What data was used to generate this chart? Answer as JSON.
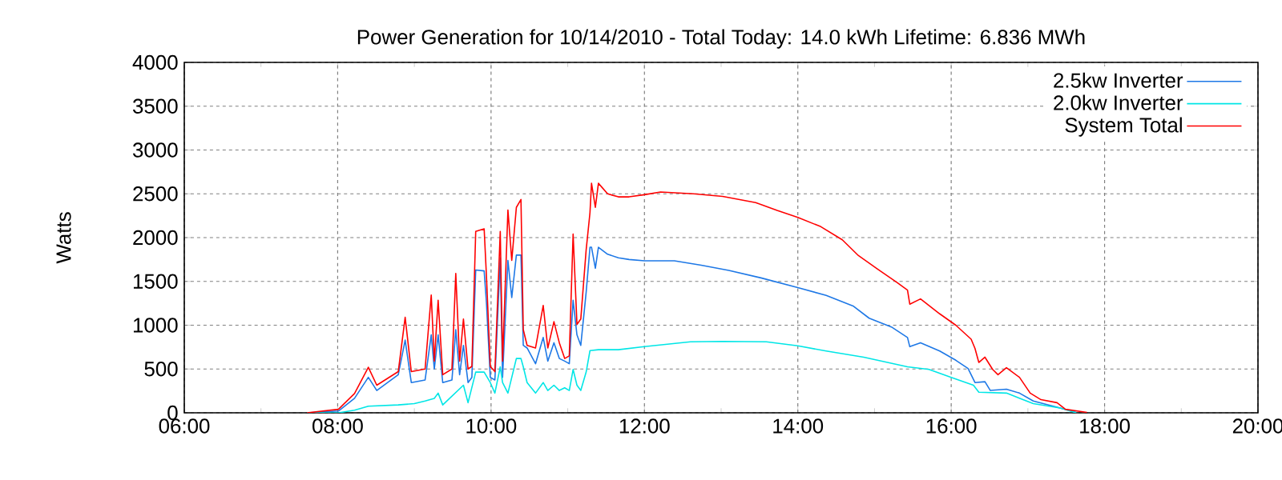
{
  "chart_data": {
    "type": "line",
    "title": "Power Generation for 10/14/2010 - Total Today: 14.0 kWh   Lifetime: 6.836 MWh",
    "ylabel": "Watts",
    "xlim": [
      6,
      20
    ],
    "ylim": [
      0,
      4000
    ],
    "xticks": [
      {
        "value": 6,
        "label": "06:00"
      },
      {
        "value": 8,
        "label": "08:00"
      },
      {
        "value": 10,
        "label": "10:00"
      },
      {
        "value": 12,
        "label": "12:00"
      },
      {
        "value": 14,
        "label": "14:00"
      },
      {
        "value": 16,
        "label": "16:00"
      },
      {
        "value": 18,
        "label": "18:00"
      },
      {
        "value": 20,
        "label": "20:00"
      }
    ],
    "yticks": [
      0,
      500,
      1000,
      1500,
      2000,
      2500,
      3000,
      3500,
      4000
    ],
    "grid": true,
    "legend": "top right",
    "marker": "none",
    "line_style": "solid",
    "series": [
      {
        "name": "2.5kw Inverter",
        "color": "#1e78e6",
        "x": [
          7.6,
          8.01,
          8.22,
          8.4,
          8.51,
          8.79,
          8.88,
          8.96,
          9.14,
          9.22,
          9.26,
          9.31,
          9.37,
          9.49,
          9.54,
          9.59,
          9.64,
          9.7,
          9.75,
          9.8,
          9.91,
          9.94,
          9.99,
          10.05,
          10.12,
          10.15,
          10.22,
          10.27,
          10.33,
          10.39,
          10.42,
          10.47,
          10.58,
          10.68,
          10.74,
          10.82,
          10.89,
          10.96,
          11.02,
          11.07,
          11.12,
          11.17,
          11.24,
          11.29,
          11.31,
          11.36,
          11.4,
          11.52,
          11.66,
          11.8,
          12.0,
          12.39,
          12.74,
          13.1,
          13.52,
          14.0,
          14.37,
          14.72,
          14.93,
          15.22,
          15.43,
          15.46,
          15.6,
          15.85,
          16.06,
          16.22,
          16.31,
          16.44,
          16.51,
          16.72,
          16.89,
          17.07,
          17.42,
          17.63
        ],
        "values": [
          0,
          20,
          165,
          405,
          255,
          435,
          830,
          345,
          375,
          890,
          500,
          890,
          345,
          375,
          950,
          435,
          770,
          345,
          405,
          1630,
          1620,
          1255,
          405,
          375,
          1770,
          405,
          1740,
          1315,
          1800,
          1800,
          770,
          740,
          560,
          860,
          590,
          800,
          620,
          590,
          560,
          1285,
          890,
          770,
          1375,
          1890,
          1890,
          1650,
          1890,
          1810,
          1770,
          1750,
          1735,
          1735,
          1685,
          1625,
          1540,
          1430,
          1340,
          1220,
          1080,
          980,
          860,
          755,
          800,
          705,
          600,
          505,
          345,
          355,
          255,
          270,
          225,
          135,
          55,
          5
        ]
      },
      {
        "name": "2.0kw Inverter",
        "color": "#00e6e6",
        "x": [
          7.6,
          8.01,
          8.22,
          8.4,
          8.79,
          9.0,
          9.14,
          9.26,
          9.31,
          9.37,
          9.64,
          9.7,
          9.8,
          9.91,
          9.99,
          10.05,
          10.12,
          10.15,
          10.22,
          10.33,
          10.39,
          10.42,
          10.47,
          10.58,
          10.68,
          10.74,
          10.82,
          10.89,
          10.96,
          11.02,
          11.07,
          11.12,
          11.17,
          11.24,
          11.29,
          11.4,
          11.66,
          12.0,
          12.6,
          13.02,
          13.59,
          14.0,
          14.37,
          14.86,
          15.43,
          15.71,
          16.0,
          16.29,
          16.36,
          16.72,
          17.07,
          17.42,
          17.63
        ],
        "values": [
          0,
          0,
          30,
          75,
          90,
          105,
          135,
          165,
          225,
          90,
          315,
          115,
          465,
          465,
          345,
          225,
          525,
          345,
          225,
          620,
          620,
          525,
          345,
          225,
          345,
          255,
          315,
          255,
          285,
          255,
          495,
          315,
          255,
          465,
          710,
          720,
          720,
          755,
          810,
          815,
          810,
          765,
          705,
          635,
          525,
          495,
          405,
          315,
          235,
          225,
          105,
          55,
          0
        ]
      },
      {
        "name": "System Total",
        "color": "#ff0000",
        "x": [
          7.6,
          8.01,
          8.22,
          8.4,
          8.51,
          8.79,
          8.88,
          8.96,
          9.14,
          9.22,
          9.26,
          9.31,
          9.37,
          9.49,
          9.54,
          9.59,
          9.64,
          9.7,
          9.75,
          9.8,
          9.91,
          9.94,
          9.99,
          10.05,
          10.12,
          10.15,
          10.22,
          10.27,
          10.33,
          10.39,
          10.42,
          10.47,
          10.58,
          10.68,
          10.74,
          10.82,
          10.89,
          10.96,
          11.02,
          11.07,
          11.12,
          11.17,
          11.24,
          11.29,
          11.31,
          11.36,
          11.4,
          11.52,
          11.66,
          11.8,
          12.0,
          12.21,
          12.64,
          13.02,
          13.45,
          13.73,
          14.0,
          14.3,
          14.58,
          14.79,
          15.04,
          15.29,
          15.43,
          15.46,
          15.6,
          15.85,
          16.06,
          16.26,
          16.31,
          16.36,
          16.44,
          16.54,
          16.61,
          16.72,
          16.89,
          17.03,
          17.17,
          17.38,
          17.49,
          17.77
        ],
        "values": [
          0,
          40,
          220,
          520,
          315,
          470,
          1090,
          470,
          500,
          1345,
          590,
          1285,
          435,
          500,
          1590,
          590,
          1070,
          500,
          530,
          2070,
          2100,
          1560,
          530,
          470,
          2070,
          590,
          2315,
          1740,
          2345,
          2435,
          950,
          770,
          740,
          1225,
          740,
          1040,
          800,
          620,
          650,
          2040,
          1010,
          1070,
          1860,
          2285,
          2620,
          2345,
          2620,
          2500,
          2465,
          2465,
          2490,
          2520,
          2500,
          2470,
          2400,
          2310,
          2230,
          2125,
          1975,
          1795,
          1640,
          1490,
          1400,
          1240,
          1300,
          1130,
          1000,
          840,
          735,
          575,
          635,
          495,
          435,
          515,
          405,
          225,
          150,
          115,
          40,
          5
        ]
      }
    ]
  }
}
